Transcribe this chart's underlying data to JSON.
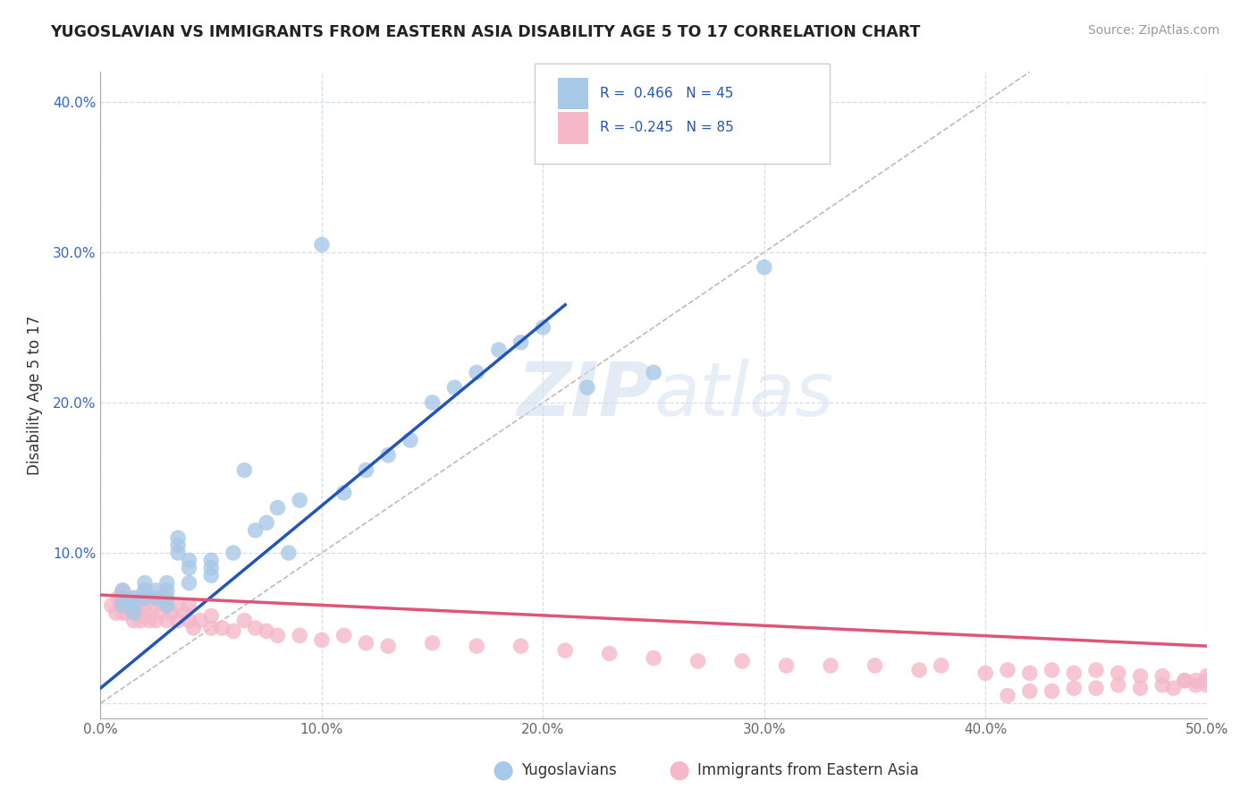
{
  "title": "YUGOSLAVIAN VS IMMIGRANTS FROM EASTERN ASIA DISABILITY AGE 5 TO 17 CORRELATION CHART",
  "source": "Source: ZipAtlas.com",
  "ylabel": "Disability Age 5 to 17",
  "xlim": [
    0.0,
    0.5
  ],
  "ylim": [
    -0.01,
    0.42
  ],
  "x_ticks": [
    0.0,
    0.1,
    0.2,
    0.3,
    0.4,
    0.5
  ],
  "x_tick_labels": [
    "0.0%",
    "10.0%",
    "20.0%",
    "30.0%",
    "40.0%",
    "50.0%"
  ],
  "y_ticks": [
    0.0,
    0.1,
    0.2,
    0.3,
    0.4
  ],
  "y_tick_labels": [
    "",
    "10.0%",
    "20.0%",
    "30.0%",
    "40.0%"
  ],
  "blue_color": "#a8c8e8",
  "pink_color": "#f4b8c8",
  "blue_line_color": "#2255bb",
  "pink_line_color": "#dd5577",
  "diag_line_color": "#bbbbbb",
  "watermark_color": "#d0dff0",
  "blue_scatter_x": [
    0.01,
    0.01,
    0.01,
    0.015,
    0.015,
    0.015,
    0.02,
    0.02,
    0.02,
    0.025,
    0.025,
    0.03,
    0.03,
    0.03,
    0.03,
    0.035,
    0.035,
    0.035,
    0.04,
    0.04,
    0.04,
    0.05,
    0.05,
    0.05,
    0.06,
    0.065,
    0.07,
    0.075,
    0.08,
    0.085,
    0.09,
    0.1,
    0.11,
    0.12,
    0.13,
    0.14,
    0.15,
    0.16,
    0.17,
    0.18,
    0.19,
    0.2,
    0.22,
    0.25,
    0.3
  ],
  "blue_scatter_y": [
    0.065,
    0.07,
    0.075,
    0.06,
    0.065,
    0.07,
    0.07,
    0.075,
    0.08,
    0.07,
    0.075,
    0.065,
    0.07,
    0.075,
    0.08,
    0.1,
    0.105,
    0.11,
    0.08,
    0.09,
    0.095,
    0.085,
    0.09,
    0.095,
    0.1,
    0.155,
    0.115,
    0.12,
    0.13,
    0.1,
    0.135,
    0.305,
    0.14,
    0.155,
    0.165,
    0.175,
    0.2,
    0.21,
    0.22,
    0.235,
    0.24,
    0.25,
    0.21,
    0.22,
    0.29
  ],
  "pink_scatter_x": [
    0.005,
    0.007,
    0.008,
    0.009,
    0.01,
    0.01,
    0.01,
    0.012,
    0.013,
    0.015,
    0.015,
    0.016,
    0.017,
    0.018,
    0.018,
    0.02,
    0.02,
    0.02,
    0.022,
    0.022,
    0.025,
    0.025,
    0.027,
    0.028,
    0.03,
    0.03,
    0.032,
    0.035,
    0.035,
    0.038,
    0.04,
    0.04,
    0.042,
    0.045,
    0.05,
    0.05,
    0.055,
    0.06,
    0.065,
    0.07,
    0.075,
    0.08,
    0.09,
    0.1,
    0.11,
    0.12,
    0.13,
    0.15,
    0.17,
    0.19,
    0.21,
    0.23,
    0.25,
    0.27,
    0.29,
    0.31,
    0.33,
    0.35,
    0.37,
    0.38,
    0.4,
    0.41,
    0.42,
    0.43,
    0.44,
    0.45,
    0.46,
    0.47,
    0.48,
    0.49,
    0.495,
    0.5,
    0.5,
    0.5,
    0.495,
    0.49,
    0.485,
    0.48,
    0.47,
    0.46,
    0.45,
    0.44,
    0.43,
    0.42,
    0.41
  ],
  "pink_scatter_y": [
    0.065,
    0.06,
    0.07,
    0.065,
    0.06,
    0.065,
    0.075,
    0.06,
    0.065,
    0.055,
    0.07,
    0.06,
    0.065,
    0.055,
    0.07,
    0.06,
    0.065,
    0.075,
    0.055,
    0.07,
    0.065,
    0.055,
    0.06,
    0.07,
    0.055,
    0.065,
    0.06,
    0.055,
    0.065,
    0.06,
    0.055,
    0.065,
    0.05,
    0.055,
    0.05,
    0.058,
    0.05,
    0.048,
    0.055,
    0.05,
    0.048,
    0.045,
    0.045,
    0.042,
    0.045,
    0.04,
    0.038,
    0.04,
    0.038,
    0.038,
    0.035,
    0.033,
    0.03,
    0.028,
    0.028,
    0.025,
    0.025,
    0.025,
    0.022,
    0.025,
    0.02,
    0.022,
    0.02,
    0.022,
    0.02,
    0.022,
    0.02,
    0.018,
    0.018,
    0.015,
    0.015,
    0.012,
    0.015,
    0.018,
    0.012,
    0.015,
    0.01,
    0.012,
    0.01,
    0.012,
    0.01,
    0.01,
    0.008,
    0.008,
    0.005
  ],
  "blue_line_x": [
    0.0,
    0.21
  ],
  "blue_line_y": [
    0.01,
    0.265
  ],
  "pink_line_x": [
    0.0,
    0.5
  ],
  "pink_line_y": [
    0.072,
    0.038
  ],
  "diag_line_x": [
    0.0,
    0.42
  ],
  "diag_line_y": [
    0.0,
    0.42
  ],
  "background_color": "#ffffff",
  "grid_color": "#d5dde8",
  "title_fontsize": 12.5,
  "axis_fontsize": 12,
  "tick_fontsize": 11
}
